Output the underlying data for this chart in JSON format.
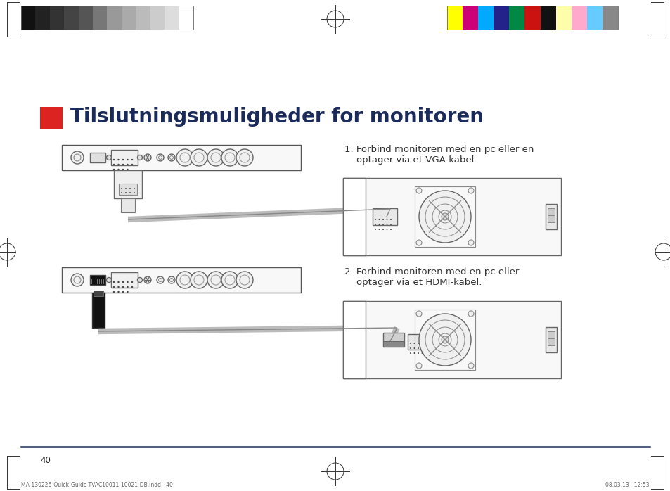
{
  "title": "Tilslutningsmuligheder for monitoren",
  "title_color": "#1a2a5a",
  "title_fontsize": 20,
  "page_number": "40",
  "footer_left": "MA-130226-Quick-Guide-TVAC10011-10021-DB.indd   40",
  "footer_right": "08.03.13   12:53",
  "red_square_color": "#dd2222",
  "section1_label": "1. Forbind monitoren med en pc eller en\n    optager via et VGA-kabel.",
  "section2_label": "2. Forbind monitoren med en pc eller\n    optager via et HDMI-kabel.",
  "bg_color": "#ffffff",
  "gray_swatches": [
    "#111111",
    "#222222",
    "#333333",
    "#444444",
    "#555555",
    "#777777",
    "#999999",
    "#aaaaaa",
    "#bbbbbb",
    "#cccccc",
    "#dddddd",
    "#ffffff"
  ],
  "color_swatches": [
    "#ffff00",
    "#cc0077",
    "#00aaff",
    "#22228a",
    "#008844",
    "#cc1111",
    "#111111",
    "#ffffaa",
    "#ffaacc",
    "#66ccff",
    "#888888"
  ]
}
